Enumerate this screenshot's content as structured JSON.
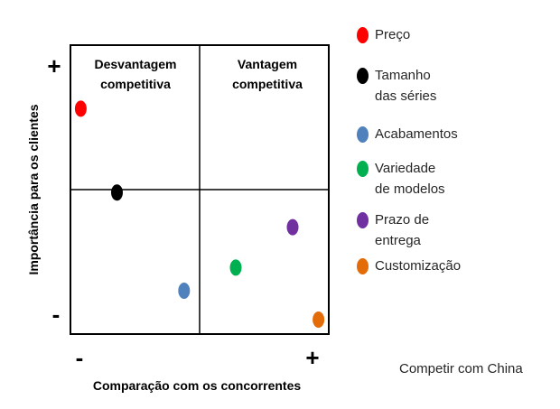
{
  "chart_data": {
    "type": "scatter",
    "title": "",
    "xlabel": "Comparação com os concorrentes",
    "ylabel": "Importância para os clientes",
    "x_min_label": "-",
    "x_max_label": "+",
    "y_min_label": "-",
    "y_max_label": "+",
    "xlim": [
      0,
      1
    ],
    "ylim": [
      0,
      1
    ],
    "quadrants": [
      {
        "position": "top-left",
        "label": "Desvantagem\ncompetitiva"
      },
      {
        "position": "top-right",
        "label": "Vantagem\ncompetitiva"
      }
    ],
    "series": [
      {
        "name": "Preço",
        "color": "#ff0000",
        "x": 0.04,
        "y": 0.78
      },
      {
        "name": "Tamanho\ndas séries",
        "color": "#000000",
        "x": 0.18,
        "y": 0.49
      },
      {
        "name": "Acabamentos",
        "color": "#4f81bd",
        "x": 0.44,
        "y": 0.15
      },
      {
        "name": "Variedade\nde modelos",
        "color": "#00b050",
        "x": 0.64,
        "y": 0.23
      },
      {
        "name": "Prazo de\nentrega",
        "color": "#7030a0",
        "x": 0.86,
        "y": 0.37
      },
      {
        "name": "Customização",
        "color": "#e36c09",
        "x": 0.96,
        "y": 0.05
      }
    ]
  },
  "caption": "Competir com China"
}
